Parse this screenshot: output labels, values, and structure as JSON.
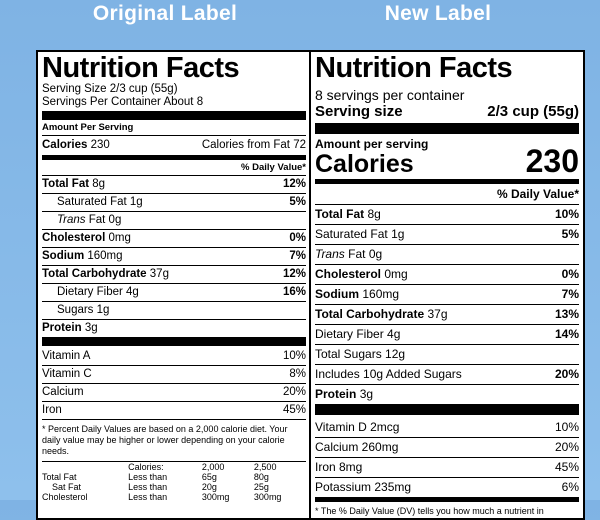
{
  "headers": {
    "original": "Original Label",
    "new": "New Label"
  },
  "original": {
    "title": "Nutrition Facts",
    "serving_size": "Serving Size 2/3 cup (55g)",
    "servings": "Servings Per Container About 8",
    "amount_per_serving": "Amount Per Serving",
    "calories_label": "Calories",
    "calories_value": "230",
    "calories_fat": "Calories from Fat 72",
    "dv_header": "% Daily Value*",
    "nutrients": [
      {
        "label": "Total Fat",
        "amount": "8g",
        "pct": "12%"
      },
      {
        "label": "Saturated Fat",
        "amount": "1g",
        "pct": "5%"
      },
      {
        "label": "Trans",
        "amount": "Fat 0g",
        "pct": ""
      },
      {
        "label": "Cholesterol",
        "amount": "0mg",
        "pct": "0%"
      },
      {
        "label": "Sodium",
        "amount": "160mg",
        "pct": "7%"
      },
      {
        "label": "Total Carbohydrate",
        "amount": "37g",
        "pct": "12%"
      },
      {
        "label": "Dietary Fiber",
        "amount": "4g",
        "pct": "16%"
      },
      {
        "label": "Sugars",
        "amount": "1g",
        "pct": ""
      },
      {
        "label": "Protein",
        "amount": "3g",
        "pct": ""
      }
    ],
    "vitamins": [
      {
        "label": "Vitamin A",
        "pct": "10%"
      },
      {
        "label": "Vitamin C",
        "pct": "8%"
      },
      {
        "label": "Calcium",
        "pct": "20%"
      },
      {
        "label": "Iron",
        "pct": "45%"
      }
    ],
    "footnote": "* Percent Daily Values are based on a 2,000 calorie diet. Your daily value may be higher or lower depending on your calorie needs.",
    "table": {
      "header": [
        "",
        "Calories:",
        "2,000",
        "2,500"
      ],
      "rows": [
        [
          "Total Fat",
          "Less than",
          "65g",
          "80g"
        ],
        [
          "Sat Fat",
          "Less than",
          "20g",
          "25g"
        ],
        [
          "Cholesterol",
          "Less than",
          "300mg",
          "300mg"
        ]
      ]
    }
  },
  "new": {
    "title": "Nutrition Facts",
    "servings": "8 servings per container",
    "serving_size_label": "Serving size",
    "serving_size_value": "2/3 cup (55g)",
    "amount_per_serving": "Amount per serving",
    "calories_label": "Calories",
    "calories_value": "230",
    "dv_header": "% Daily Value*",
    "nutrients": [
      {
        "label": "Total Fat",
        "amount": "8g",
        "pct": "10%"
      },
      {
        "label": "Saturated Fat",
        "amount": "1g",
        "pct": "5%"
      },
      {
        "label": "Trans",
        "amount": "Fat 0g",
        "pct": ""
      },
      {
        "label": "Cholesterol",
        "amount": "0mg",
        "pct": "0%"
      },
      {
        "label": "Sodium",
        "amount": "160mg",
        "pct": "7%"
      },
      {
        "label": "Total Carbohydrate",
        "amount": "37g",
        "pct": "13%"
      },
      {
        "label": "Dietary Fiber",
        "amount": "4g",
        "pct": "14%"
      },
      {
        "label": "Total Sugars",
        "amount": "12g",
        "pct": ""
      },
      {
        "label": "Includes 10g Added Sugars",
        "amount": "",
        "pct": "20%"
      },
      {
        "label": "Protein",
        "amount": "3g",
        "pct": ""
      }
    ],
    "vitamins": [
      {
        "label": "Vitamin D 2mcg",
        "pct": "10%"
      },
      {
        "label": "Calcium 260mg",
        "pct": "20%"
      },
      {
        "label": "Iron 8mg",
        "pct": "45%"
      },
      {
        "label": "Potassium 235mg",
        "pct": "6%"
      }
    ],
    "footnote": "* The % Daily Value (DV) tells you how much a nutrient in"
  }
}
